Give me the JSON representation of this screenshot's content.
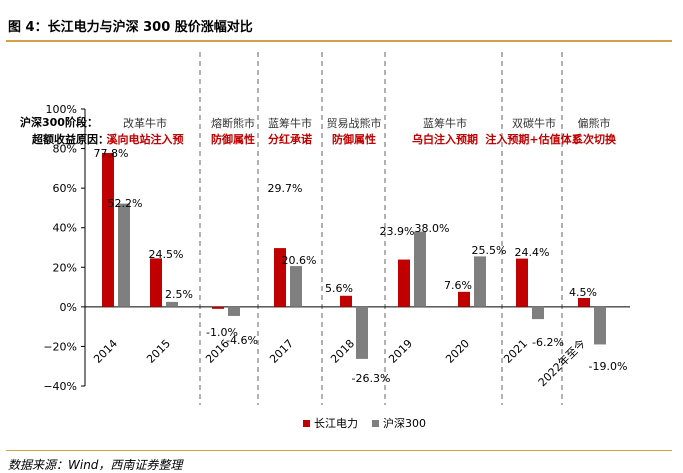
{
  "figure": {
    "title": "图 4：长江电力与沪深 300 股价涨幅对比",
    "source": "数据来源：Wind，西南证券整理"
  },
  "notes": {
    "row1_label": "沪深300阶段：",
    "row2_label": "超额收益原因："
  },
  "periods": [
    {
      "phase": "改革牛市",
      "reason": [
        "溪向电站注入预"
      ]
    },
    {
      "phase": "熔断熊市",
      "reason": [
        "防御属性"
      ]
    },
    {
      "phase": "蓝筹牛市",
      "reason": [
        "分红承诺"
      ]
    },
    {
      "phase": "贸易战熊市",
      "reason": [
        "防御属性"
      ]
    },
    {
      "phase": "蓝筹牛市",
      "reason": [
        "乌白注入预期"
      ]
    },
    {
      "phase": "双碳牛市",
      "reason": [
        "注入预期+估值体系"
      ]
    },
    {
      "phase": "偏熊市",
      "reason": [
        "二次切换"
      ]
    }
  ],
  "colors": {
    "series1": "#c00000",
    "series2": "#7f7f7f",
    "rule": "#d2a04a",
    "reason": "#c00000"
  },
  "chart_data": {
    "type": "bar",
    "title": "",
    "xlabel": "",
    "ylabel": "",
    "categories": [
      "2014",
      "2015",
      "2016",
      "2017",
      "2018",
      "2019",
      "2020",
      "2021",
      "2022年至今"
    ],
    "series": [
      {
        "name": "长江电力",
        "values": [
          77.8,
          24.5,
          -1.0,
          29.7,
          5.6,
          23.9,
          7.6,
          24.4,
          4.5
        ],
        "labels": [
          "77.8%",
          "24.5%",
          "-1.0%",
          "29.7%",
          "5.6%",
          "23.9%",
          "7.6%",
          "24.4%",
          "4.5%"
        ]
      },
      {
        "name": "沪深300",
        "values": [
          52.2,
          2.5,
          -4.6,
          20.6,
          -26.3,
          38.0,
          25.5,
          -6.2,
          -19.0
        ],
        "labels": [
          "52.2%",
          "2.5%",
          "-4.6%",
          "20.6%",
          "-26.3%",
          "38.0%",
          "25.5%",
          "-6.2%",
          "-19.0%"
        ]
      }
    ],
    "ylim": [
      -40,
      100
    ],
    "yticks": [
      -40,
      -20,
      0,
      20,
      40,
      60,
      80,
      100
    ],
    "ytick_labels": [
      "−40%",
      "−20%",
      "0%",
      "20%",
      "40%",
      "60%",
      "80%",
      "100%"
    ],
    "grid": false,
    "legend": "bottom"
  }
}
